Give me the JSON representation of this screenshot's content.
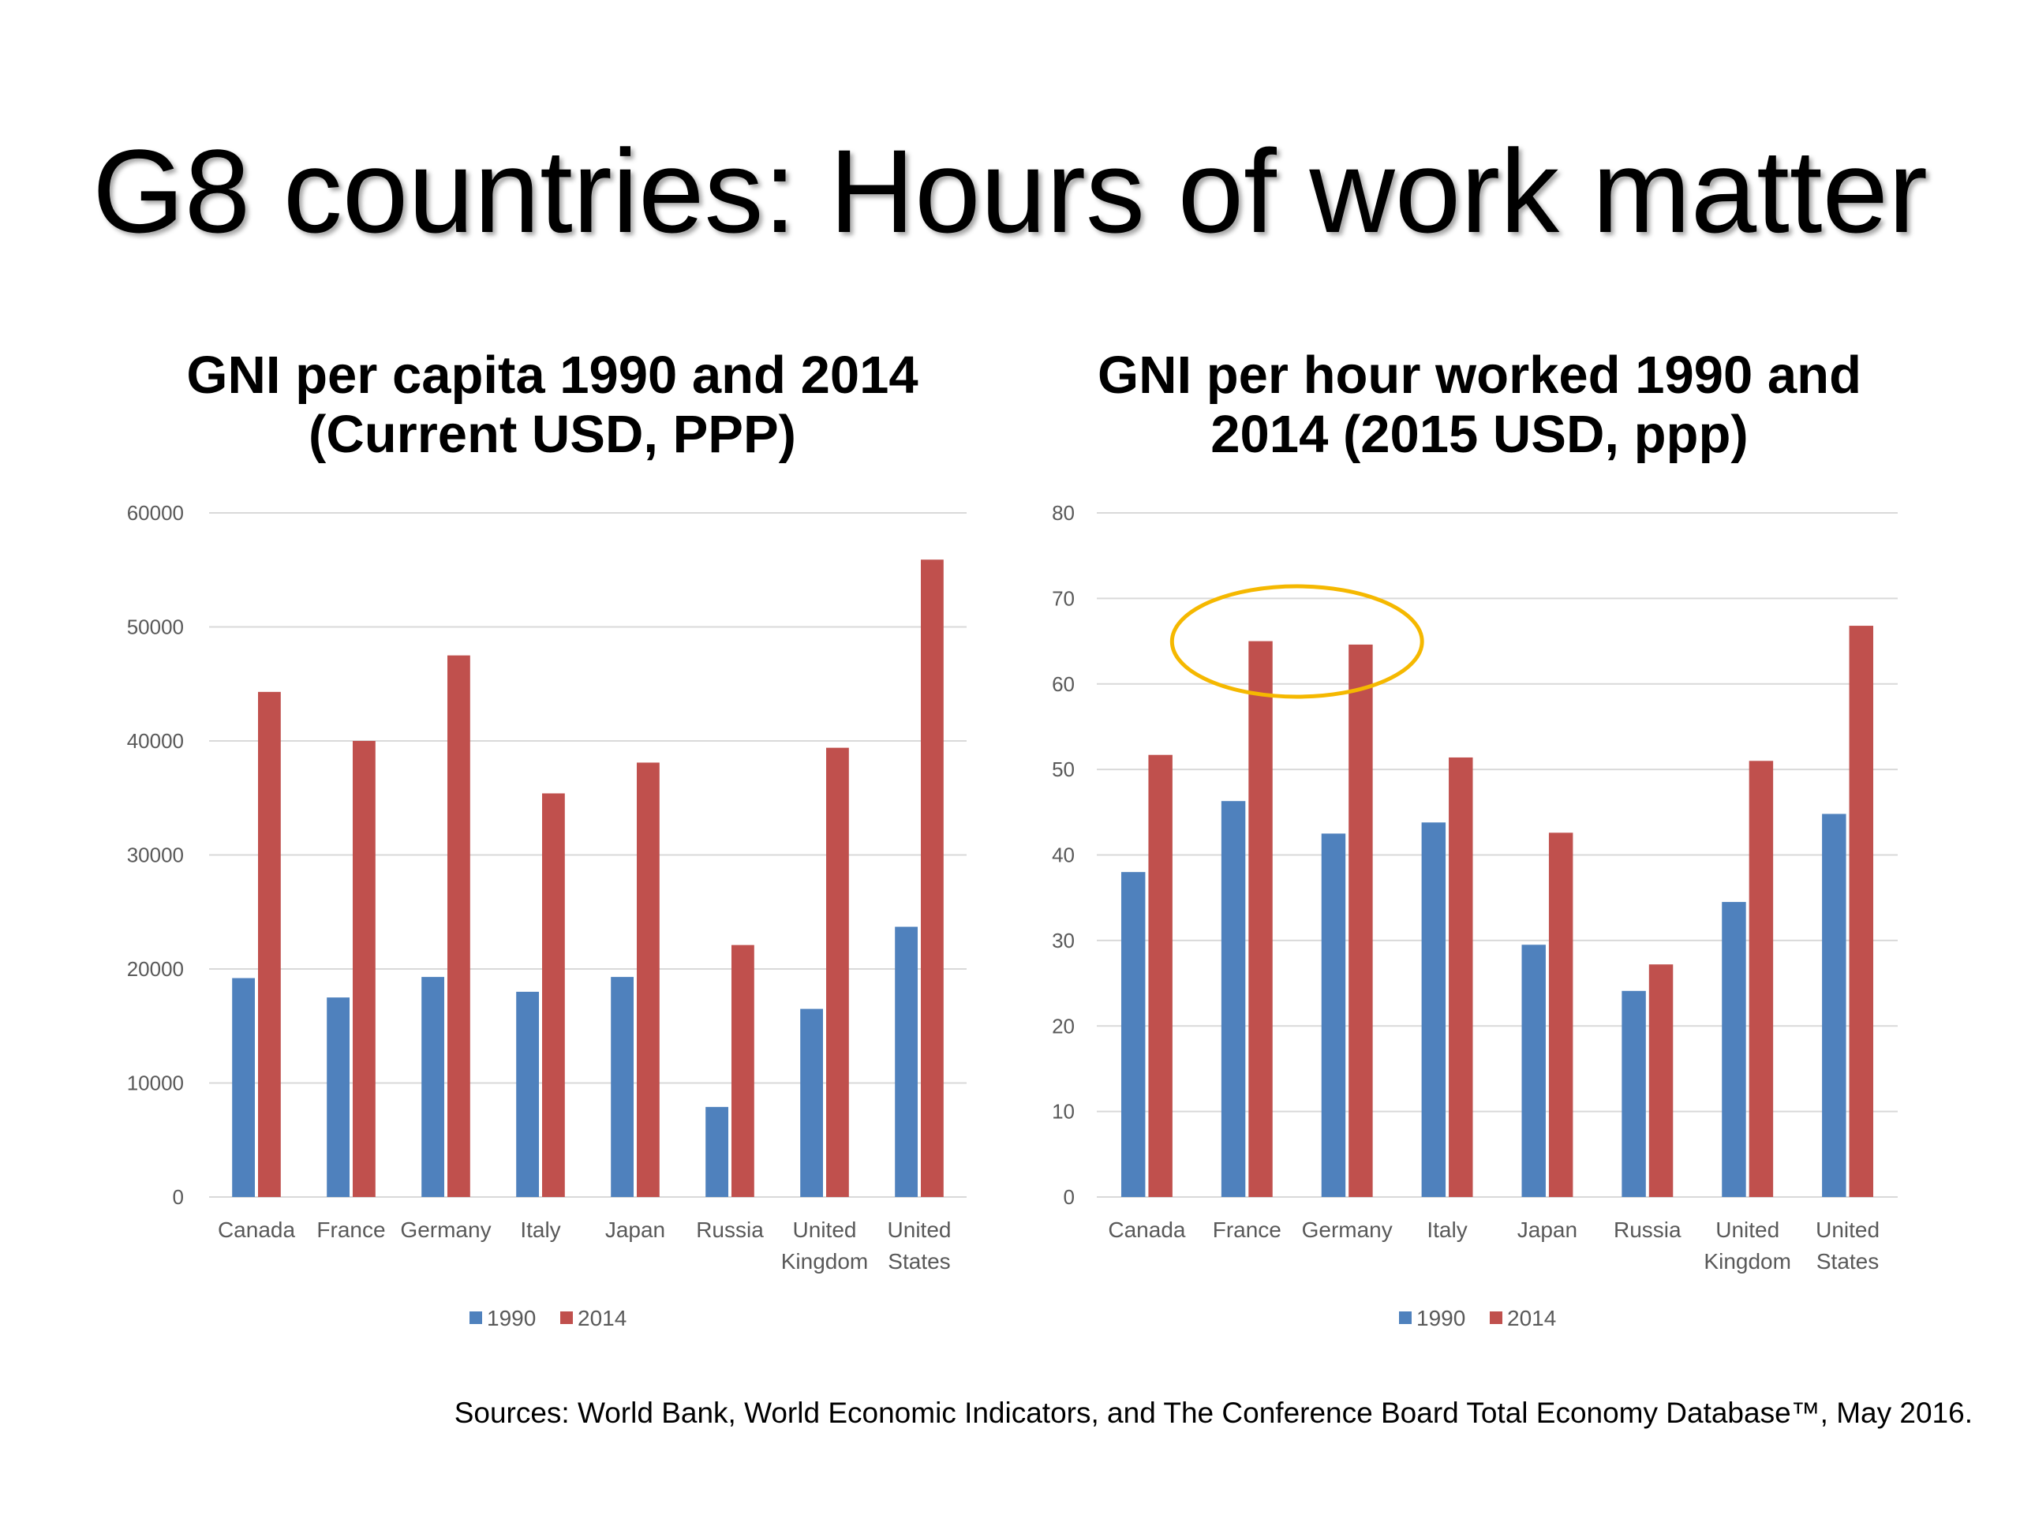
{
  "slide": {
    "title": "G8 countries: Hours of work matter",
    "source": "Sources: World Bank, World Economic Indicators, and The Conference Board Total Economy Database™, May 2016."
  },
  "colors": {
    "series_1990": "#4F81BD",
    "series_2014": "#C0504D",
    "highlight": "#F5B800",
    "grid": "#D9D9D9",
    "axis_text": "#595959"
  },
  "chart_data": [
    {
      "type": "bar",
      "title_line1": "GNI per capita 1990 and 2014",
      "title_line2": "(Current USD, PPP)",
      "categories": [
        [
          "Canada"
        ],
        [
          "France"
        ],
        [
          "Germany"
        ],
        [
          "Italy"
        ],
        [
          "Japan"
        ],
        [
          "Russia"
        ],
        [
          "United",
          "Kingdom"
        ],
        [
          "United",
          "States"
        ]
      ],
      "series": [
        {
          "name": "1990",
          "values": [
            19200,
            17500,
            19300,
            18000,
            19300,
            7900,
            16500,
            23700
          ]
        },
        {
          "name": "2014",
          "values": [
            44300,
            40000,
            47500,
            35400,
            38100,
            22100,
            39400,
            55900
          ]
        }
      ],
      "yticks": [
        "0",
        "10000",
        "20000",
        "30000",
        "40000",
        "50000",
        "60000"
      ],
      "ylim": [
        0,
        60000
      ],
      "grid": true,
      "legend": "bottom"
    },
    {
      "type": "bar",
      "title_line1": "GNI per hour worked 1990 and",
      "title_line2": "2014 (2015 USD, ppp)",
      "categories": [
        [
          "Canada"
        ],
        [
          "France"
        ],
        [
          "Germany"
        ],
        [
          "Italy"
        ],
        [
          "Japan"
        ],
        [
          "Russia"
        ],
        [
          "United",
          "Kingdom"
        ],
        [
          "United",
          "States"
        ]
      ],
      "series": [
        {
          "name": "1990",
          "values": [
            38,
            46.3,
            42.5,
            43.8,
            29.5,
            24.1,
            34.5,
            44.8
          ]
        },
        {
          "name": "2014",
          "values": [
            51.7,
            65,
            64.6,
            51.4,
            42.6,
            27.2,
            51,
            66.8
          ]
        }
      ],
      "yticks": [
        "0",
        "10",
        "20",
        "30",
        "40",
        "50",
        "60",
        "70",
        "80"
      ],
      "ylim": [
        0,
        80
      ],
      "grid": true,
      "legend": "bottom",
      "highlight": {
        "shape": "ellipse",
        "categories": [
          "France",
          "Germany"
        ]
      }
    }
  ]
}
